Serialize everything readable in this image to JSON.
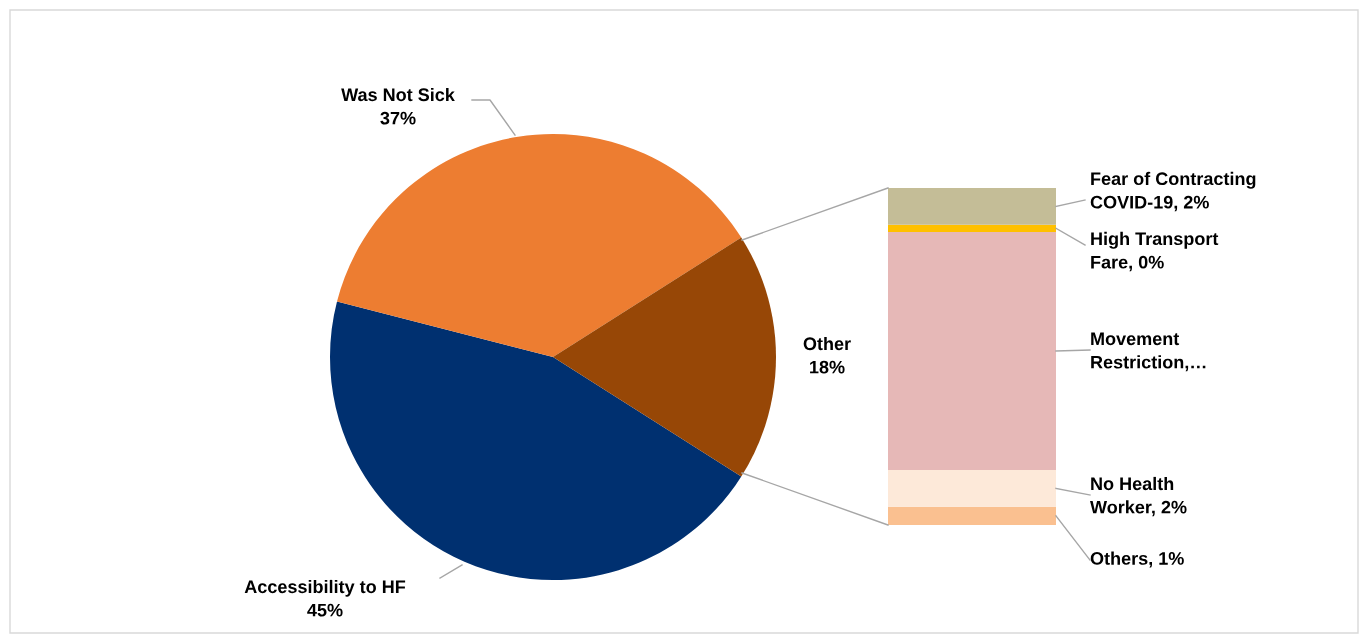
{
  "chart_data": [
    {
      "type": "pie",
      "categories": [
        "Accessibility to HF",
        "Was Not Sick",
        "Other"
      ],
      "values": [
        45,
        37,
        18
      ],
      "value_labels": [
        "45%",
        "37%",
        "18%"
      ],
      "colors": [
        "#003070",
        "#ED7D31",
        "#974706"
      ]
    },
    {
      "type": "bar",
      "stacked": true,
      "tick_labels": false,
      "categories": [
        null
      ],
      "series": [
        {
          "color": "#FAC090",
          "values": [
            1
          ],
          "value_labels": [
            "Others, 1%"
          ]
        },
        {
          "color": "#FDE9D9",
          "values": [
            2
          ],
          "value_labels": [
            "No Health\nWorker, 2%"
          ]
        },
        {
          "color": "#E6B8B7",
          "values": [
            13
          ],
          "value_labels": [
            "Movement\nRestriction,…"
          ]
        },
        {
          "color": "#FFC000",
          "values": [
            0.4
          ],
          "value_labels": [
            "High Transport\nFare, 0%"
          ]
        },
        {
          "color": "#C4BD97",
          "values": [
            2
          ],
          "value_labels": [
            "Fear of Contracting\nCOVID-19, 2%"
          ]
        }
      ]
    }
  ]
}
